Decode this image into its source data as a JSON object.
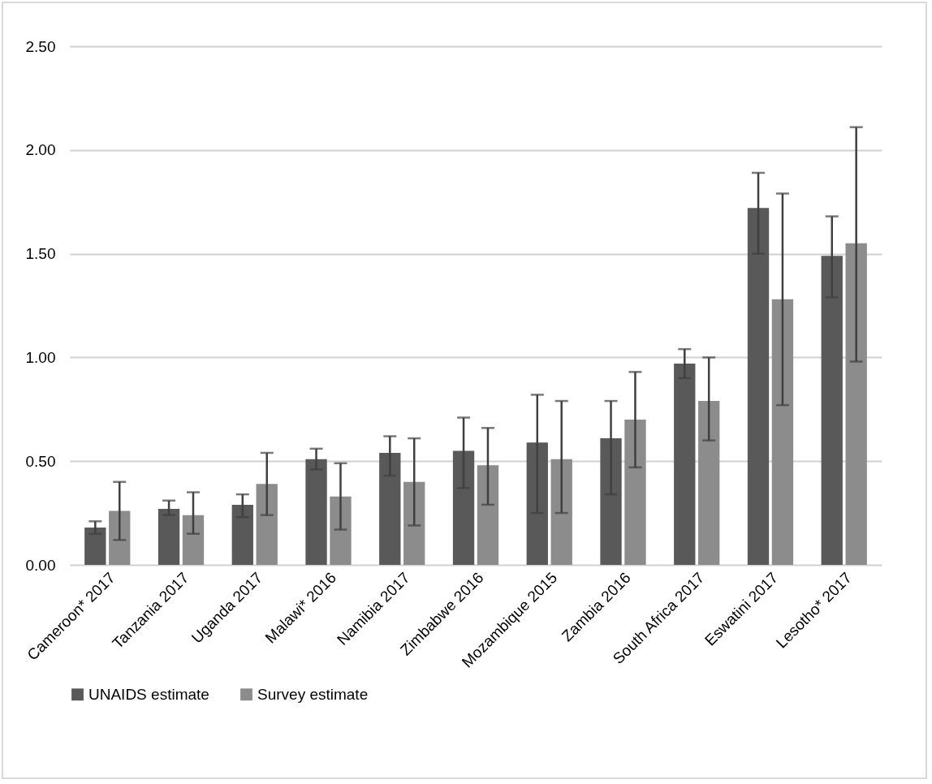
{
  "chart_data": {
    "type": "bar",
    "categories": [
      "Cameroon* 2017",
      "Tanzania 2017",
      "Uganda 2017",
      "Malawi* 2016",
      "Namibia 2017",
      "Zimbabwe 2016",
      "Mozambique 2015",
      "Zambia 2016",
      "South Africa 2017",
      "Eswatini 2017",
      "Lesotho* 2017"
    ],
    "series": [
      {
        "name": "UNAIDS estimate",
        "color": "#595959",
        "values": [
          0.18,
          0.27,
          0.29,
          0.51,
          0.54,
          0.55,
          0.59,
          0.61,
          0.97,
          1.72,
          1.49
        ],
        "errors": [
          [
            0.15,
            0.21
          ],
          [
            0.24,
            0.31
          ],
          [
            0.23,
            0.34
          ],
          [
            0.46,
            0.56
          ],
          [
            0.43,
            0.62
          ],
          [
            0.37,
            0.71
          ],
          [
            0.25,
            0.82
          ],
          [
            0.34,
            0.79
          ],
          [
            0.9,
            1.04
          ],
          [
            1.5,
            1.89
          ],
          [
            1.29,
            1.68
          ]
        ]
      },
      {
        "name": "Survey estimate",
        "color": "#8c8c8c",
        "values": [
          0.26,
          0.24,
          0.39,
          0.33,
          0.4,
          0.48,
          0.51,
          0.7,
          0.79,
          1.28,
          1.55
        ],
        "errors": [
          [
            0.12,
            0.4
          ],
          [
            0.15,
            0.35
          ],
          [
            0.24,
            0.54
          ],
          [
            0.17,
            0.49
          ],
          [
            0.19,
            0.61
          ],
          [
            0.29,
            0.66
          ],
          [
            0.25,
            0.79
          ],
          [
            0.47,
            0.93
          ],
          [
            0.6,
            1.0
          ],
          [
            0.77,
            1.79
          ],
          [
            0.98,
            2.11
          ]
        ]
      }
    ],
    "ylim": [
      0,
      2.5
    ],
    "yticks": [
      {
        "value": 0,
        "label": "0.00"
      },
      {
        "value": 0.5,
        "label": "0.50"
      },
      {
        "value": 1,
        "label": "1.00"
      },
      {
        "value": 1.5,
        "label": "1.50"
      },
      {
        "value": 2,
        "label": "2.00"
      },
      {
        "value": 2.5,
        "label": "2.50"
      }
    ],
    "grid": "y",
    "legend": "bottom"
  }
}
